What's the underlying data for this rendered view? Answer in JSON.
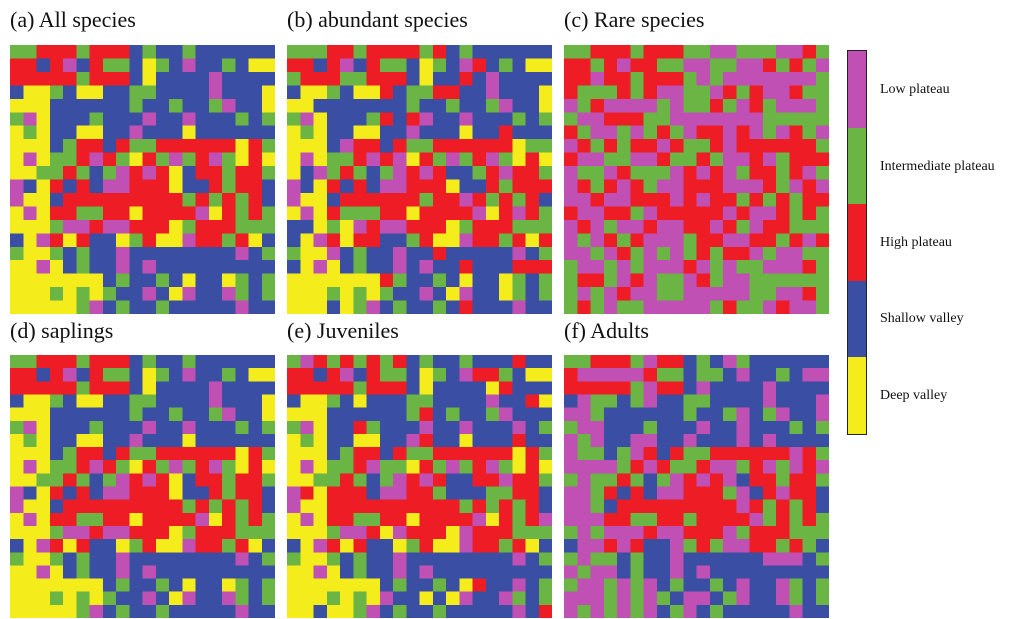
{
  "chart_data": {
    "type": "heatmap",
    "legend": {
      "placement": "right",
      "classes": [
        {
          "code": 4,
          "label": "Low plateau",
          "color": "#c150b5"
        },
        {
          "code": 3,
          "label": "Intermediate plateau",
          "color": "#6ab544"
        },
        {
          "code": 2,
          "label": "High plateau",
          "color": "#ee1c24"
        },
        {
          "code": 1,
          "label": "Shallow valley",
          "color": "#3a4fa3"
        },
        {
          "code": 0,
          "label": "Deep valley",
          "color": "#f4ec1b"
        }
      ]
    },
    "panels": [
      {
        "title": "(a)   All species",
        "grid_size": [
          20,
          20
        ],
        "map_variant": "all_species"
      },
      {
        "title": "(b) abundant species",
        "grid_size": [
          20,
          20
        ],
        "map_variant": "abundant_species"
      },
      {
        "title": "(c) Rare species",
        "grid_size": [
          20,
          20
        ],
        "map_variant": "rare_species"
      },
      {
        "title": "(d) saplings",
        "grid_size": [
          20,
          20
        ],
        "map_variant": "saplings"
      },
      {
        "title": "(e) Juveniles",
        "grid_size": [
          20,
          20
        ],
        "map_variant": "juveniles"
      },
      {
        "title": "(f) Adults",
        "grid_size": [
          20,
          20
        ],
        "map_variant": "adults"
      }
    ],
    "grid": false
  }
}
